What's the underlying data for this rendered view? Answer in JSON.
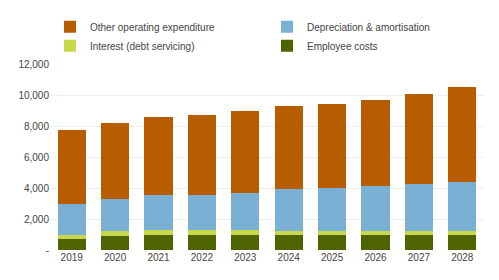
{
  "chart_data": {
    "type": "bar",
    "stacked": true,
    "categories": [
      "2019",
      "2020",
      "2021",
      "2022",
      "2023",
      "2024",
      "2025",
      "2026",
      "2027",
      "2028"
    ],
    "series": [
      {
        "name": "Employee costs",
        "color": "#4d6400",
        "values": [
          700,
          900,
          950,
          950,
          950,
          950,
          950,
          950,
          950,
          950
        ]
      },
      {
        "name": "Interest (debt servicing)",
        "color": "#c8d84b",
        "values": [
          250,
          300,
          350,
          350,
          350,
          300,
          300,
          300,
          300,
          300
        ]
      },
      {
        "name": "Depreciation & amortisation",
        "color": "#7ab0d4",
        "values": [
          2050,
          2100,
          2250,
          2250,
          2400,
          2700,
          2750,
          2900,
          3000,
          3150
        ]
      },
      {
        "name": "Other operating expenditure",
        "color": "#b85c00",
        "values": [
          4750,
          4900,
          5050,
          5150,
          5300,
          5350,
          5400,
          5500,
          5800,
          6100
        ]
      }
    ],
    "ylim": [
      0,
      12000
    ],
    "yticks": [
      {
        "value": 0,
        "label": "-"
      },
      {
        "value": 2000,
        "label": "2,000"
      },
      {
        "value": 4000,
        "label": "4,000"
      },
      {
        "value": 6000,
        "label": "6,000"
      },
      {
        "value": 8000,
        "label": "8,000"
      },
      {
        "value": 10000,
        "label": "10,000"
      },
      {
        "value": 12000,
        "label": "12,000"
      }
    ],
    "grid": true,
    "legend": "top"
  }
}
